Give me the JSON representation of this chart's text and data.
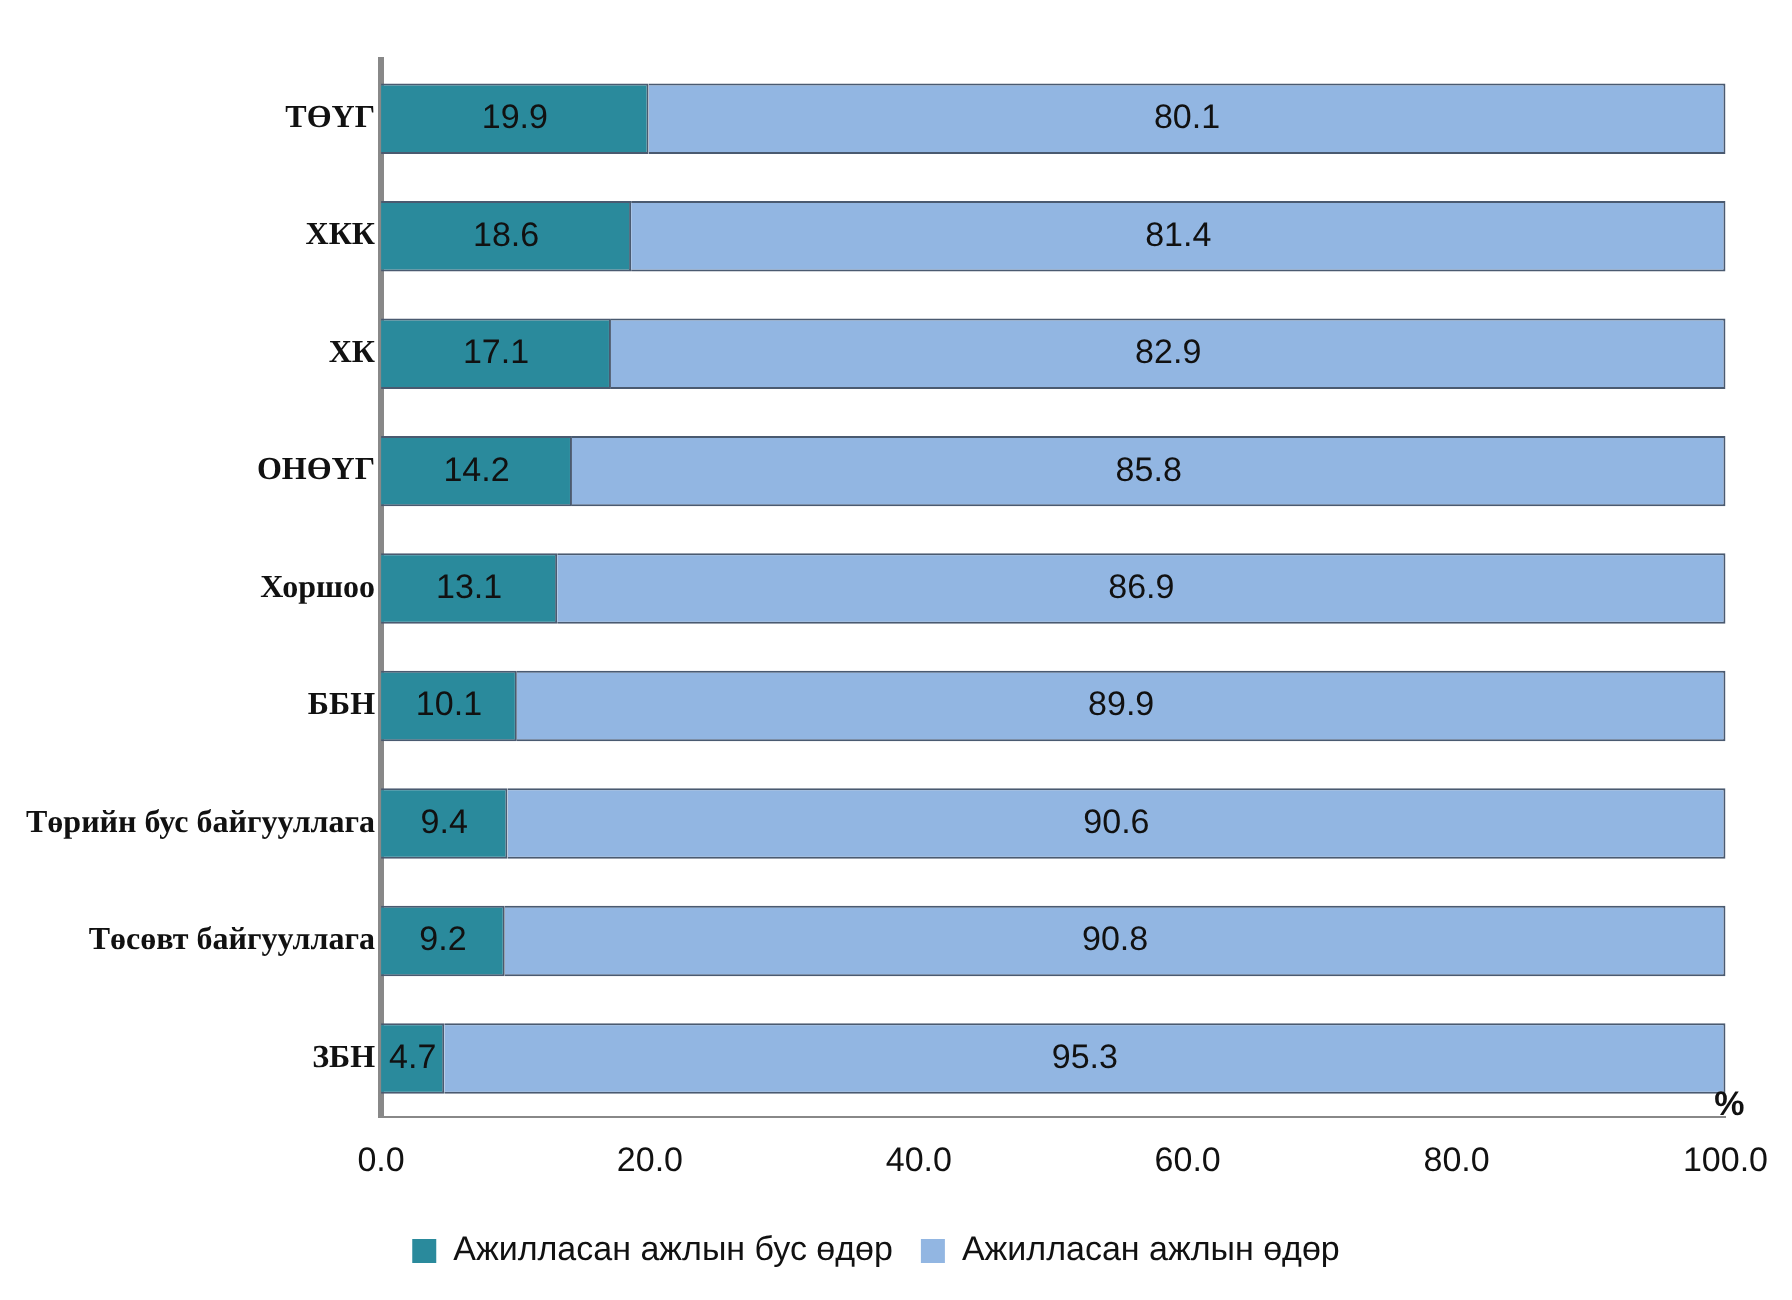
{
  "chart_data": {
    "type": "bar",
    "orientation": "horizontal",
    "stacked": true,
    "categories": [
      "ТӨҮГ",
      "ХКК",
      "ХК",
      "ОНӨҮГ",
      "Хоршоо",
      "ББН",
      "Төрийн бус байгууллага",
      "Төсөвт байгууллага",
      "ЗБН"
    ],
    "series": [
      {
        "name": "Ажилласан ажлын бус өдөр",
        "color": "#2a8a9c",
        "values": [
          19.9,
          18.6,
          17.1,
          14.2,
          13.1,
          10.1,
          9.4,
          9.2,
          4.7
        ]
      },
      {
        "name": "Ажилласан ажлын өдөр",
        "color": "#92b6e2",
        "values": [
          80.1,
          81.4,
          82.9,
          85.8,
          86.9,
          89.9,
          90.6,
          90.8,
          95.3
        ]
      }
    ],
    "xlabel": "%",
    "xlim": [
      0,
      100
    ],
    "xticks": [
      {
        "value": 0,
        "label": "0.0"
      },
      {
        "value": 20,
        "label": "20.0"
      },
      {
        "value": 40,
        "label": "40.0"
      },
      {
        "value": 60,
        "label": "60.0"
      },
      {
        "value": 80,
        "label": "80.0"
      },
      {
        "value": 100,
        "label": "100.0"
      }
    ],
    "data_labels": true,
    "legend": "bottom"
  }
}
